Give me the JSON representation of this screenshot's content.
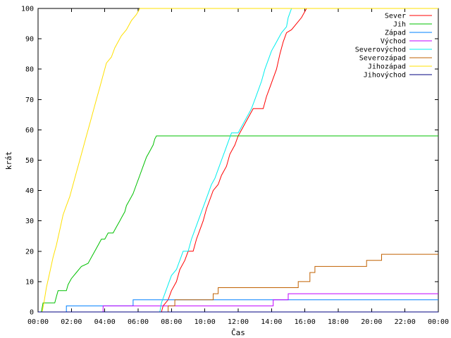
{
  "chart_data": {
    "type": "line",
    "title": "",
    "xlabel": "Čas",
    "ylabel": "krát",
    "xlim": [
      0,
      24
    ],
    "ylim": [
      0,
      100
    ],
    "grid": false,
    "legend_position": "top-right",
    "x_tick_labels": [
      "00:00",
      "02:00",
      "04:00",
      "06:00",
      "08:00",
      "10:00",
      "12:00",
      "14:00",
      "16:00",
      "18:00",
      "20:00",
      "22:00",
      "00:00"
    ],
    "y_ticks": [
      0,
      10,
      20,
      30,
      40,
      50,
      60,
      70,
      80,
      90,
      100
    ],
    "series": [
      {
        "name": "Sever",
        "color": "#ff0000",
        "points": [
          [
            0,
            0
          ],
          [
            7.4,
            0
          ],
          [
            7.5,
            2
          ],
          [
            7.8,
            4
          ],
          [
            8.0,
            7
          ],
          [
            8.3,
            10
          ],
          [
            8.5,
            14
          ],
          [
            8.8,
            17
          ],
          [
            9.0,
            20
          ],
          [
            9.3,
            20
          ],
          [
            9.5,
            24
          ],
          [
            9.7,
            27
          ],
          [
            9.9,
            30
          ],
          [
            10.1,
            34
          ],
          [
            10.3,
            37
          ],
          [
            10.5,
            40
          ],
          [
            10.8,
            42
          ],
          [
            11.0,
            45
          ],
          [
            11.3,
            48
          ],
          [
            11.5,
            52
          ],
          [
            11.8,
            55
          ],
          [
            12.0,
            58
          ],
          [
            12.3,
            61
          ],
          [
            12.5,
            63
          ],
          [
            12.7,
            65
          ],
          [
            12.9,
            67
          ],
          [
            13.5,
            67
          ],
          [
            13.7,
            71
          ],
          [
            13.9,
            74
          ],
          [
            14.1,
            77
          ],
          [
            14.3,
            80
          ],
          [
            14.5,
            85
          ],
          [
            14.7,
            89
          ],
          [
            14.9,
            92
          ],
          [
            15.2,
            93
          ],
          [
            15.5,
            95
          ],
          [
            15.8,
            97
          ],
          [
            16.1,
            100
          ],
          [
            24,
            100
          ]
        ]
      },
      {
        "name": "Jih",
        "color": "#00c000",
        "points": [
          [
            0,
            0
          ],
          [
            0.2,
            0
          ],
          [
            0.3,
            3
          ],
          [
            1.0,
            3
          ],
          [
            1.1,
            5
          ],
          [
            1.2,
            7
          ],
          [
            1.7,
            7
          ],
          [
            1.8,
            9
          ],
          [
            2.0,
            11
          ],
          [
            2.3,
            13
          ],
          [
            2.6,
            15
          ],
          [
            3.0,
            16
          ],
          [
            3.2,
            18
          ],
          [
            3.4,
            20
          ],
          [
            3.6,
            22
          ],
          [
            3.8,
            24
          ],
          [
            4.0,
            24
          ],
          [
            4.2,
            26
          ],
          [
            4.5,
            26
          ],
          [
            4.7,
            28
          ],
          [
            4.9,
            30
          ],
          [
            5.0,
            31
          ],
          [
            5.2,
            33
          ],
          [
            5.3,
            35
          ],
          [
            5.5,
            37
          ],
          [
            5.7,
            39
          ],
          [
            5.9,
            42
          ],
          [
            6.1,
            45
          ],
          [
            6.3,
            48
          ],
          [
            6.5,
            51
          ],
          [
            6.7,
            53
          ],
          [
            6.9,
            55
          ],
          [
            7.0,
            57
          ],
          [
            7.1,
            58
          ],
          [
            24,
            58
          ]
        ]
      },
      {
        "name": "Západ",
        "color": "#0080ff",
        "points": [
          [
            0,
            0
          ],
          [
            1.7,
            0
          ],
          [
            1.7,
            2
          ],
          [
            5.7,
            2
          ],
          [
            5.7,
            4
          ],
          [
            24,
            4
          ]
        ]
      },
      {
        "name": "Východ",
        "color": "#c000ff",
        "points": [
          [
            0,
            0
          ],
          [
            3.9,
            0
          ],
          [
            3.9,
            2
          ],
          [
            14.1,
            2
          ],
          [
            14.1,
            4
          ],
          [
            15.0,
            4
          ],
          [
            15.0,
            6
          ],
          [
            24,
            6
          ]
        ]
      },
      {
        "name": "Severovýchod",
        "color": "#00eeee",
        "points": [
          [
            0,
            0
          ],
          [
            7.3,
            0
          ],
          [
            7.4,
            3
          ],
          [
            7.6,
            6
          ],
          [
            7.8,
            9
          ],
          [
            8.0,
            12
          ],
          [
            8.3,
            14
          ],
          [
            8.5,
            17
          ],
          [
            8.7,
            20
          ],
          [
            9.0,
            20
          ],
          [
            9.2,
            24
          ],
          [
            9.4,
            27
          ],
          [
            9.6,
            30
          ],
          [
            9.8,
            33
          ],
          [
            10.0,
            36
          ],
          [
            10.2,
            39
          ],
          [
            10.4,
            42
          ],
          [
            10.6,
            44
          ],
          [
            10.8,
            47
          ],
          [
            11.0,
            50
          ],
          [
            11.2,
            53
          ],
          [
            11.4,
            56
          ],
          [
            11.6,
            59
          ],
          [
            12.0,
            59
          ],
          [
            12.2,
            61
          ],
          [
            12.5,
            64
          ],
          [
            12.8,
            67
          ],
          [
            13.0,
            70
          ],
          [
            13.2,
            73
          ],
          [
            13.4,
            76
          ],
          [
            13.6,
            80
          ],
          [
            13.8,
            83
          ],
          [
            14.0,
            86
          ],
          [
            14.2,
            88
          ],
          [
            14.4,
            90
          ],
          [
            14.6,
            92
          ],
          [
            14.9,
            94
          ],
          [
            15.0,
            97
          ],
          [
            15.2,
            100
          ],
          [
            24,
            100
          ]
        ]
      },
      {
        "name": "Severozápad",
        "color": "#c06000",
        "points": [
          [
            0,
            0
          ],
          [
            7.8,
            0
          ],
          [
            7.8,
            2
          ],
          [
            8.2,
            2
          ],
          [
            8.2,
            4
          ],
          [
            10.5,
            4
          ],
          [
            10.5,
            6
          ],
          [
            10.8,
            6
          ],
          [
            10.8,
            8
          ],
          [
            15.6,
            8
          ],
          [
            15.6,
            10
          ],
          [
            16.3,
            10
          ],
          [
            16.3,
            13
          ],
          [
            16.6,
            13
          ],
          [
            16.6,
            15
          ],
          [
            19.7,
            15
          ],
          [
            19.7,
            17
          ],
          [
            20.6,
            17
          ],
          [
            20.6,
            19
          ],
          [
            24,
            19
          ]
        ]
      },
      {
        "name": "Jihozápad",
        "color": "#ffe000",
        "points": [
          [
            0,
            0
          ],
          [
            0.25,
            0
          ],
          [
            0.35,
            3
          ],
          [
            0.5,
            8
          ],
          [
            0.7,
            13
          ],
          [
            0.9,
            18
          ],
          [
            1.1,
            22
          ],
          [
            1.3,
            27
          ],
          [
            1.5,
            32
          ],
          [
            1.7,
            35
          ],
          [
            1.9,
            38
          ],
          [
            2.1,
            42
          ],
          [
            2.3,
            46
          ],
          [
            2.5,
            50
          ],
          [
            2.7,
            54
          ],
          [
            2.9,
            58
          ],
          [
            3.1,
            62
          ],
          [
            3.3,
            66
          ],
          [
            3.5,
            70
          ],
          [
            3.7,
            74
          ],
          [
            3.9,
            78
          ],
          [
            4.1,
            82
          ],
          [
            4.4,
            84
          ],
          [
            4.6,
            87
          ],
          [
            4.8,
            89
          ],
          [
            5.0,
            91
          ],
          [
            5.3,
            93
          ],
          [
            5.6,
            96
          ],
          [
            5.9,
            98
          ],
          [
            6.1,
            100
          ],
          [
            24,
            100
          ]
        ]
      },
      {
        "name": "Jihovýchod",
        "color": "#000080",
        "points": [
          [
            0,
            0
          ],
          [
            24,
            0
          ]
        ]
      }
    ]
  }
}
